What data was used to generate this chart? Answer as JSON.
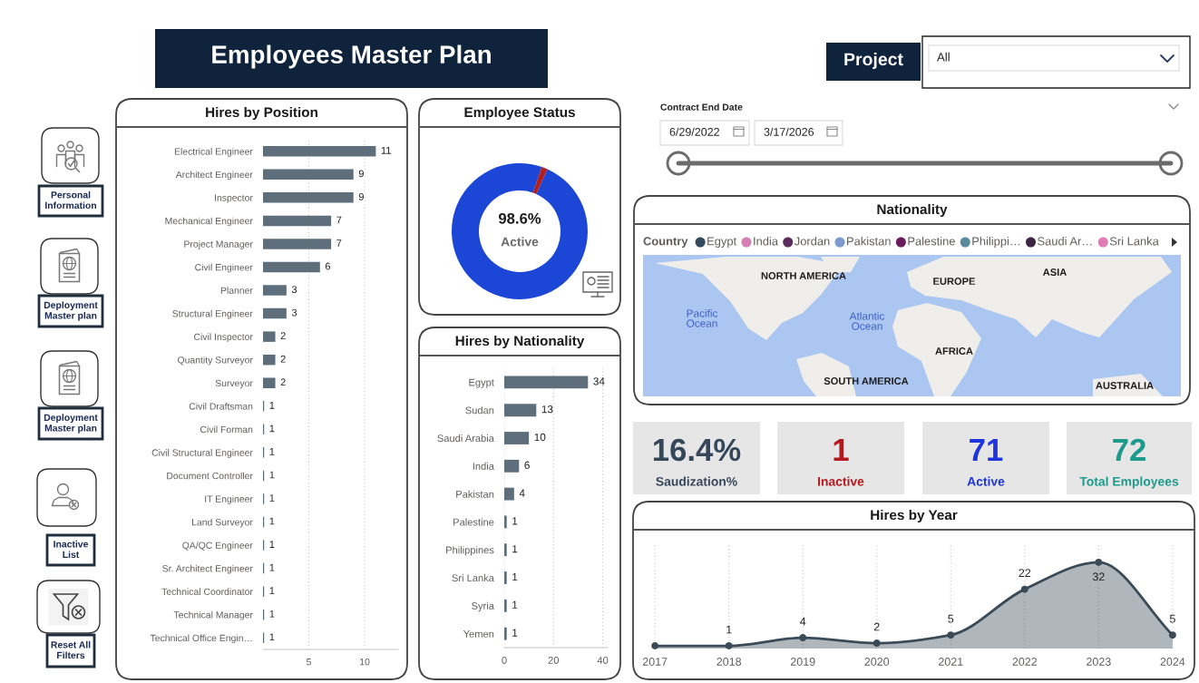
{
  "chart_data": [
    {
      "type": "other",
      "title": "Employees Master Plan"
    },
    {
      "type": "other",
      "title": "Project",
      "annotations": [
        "All"
      ]
    },
    {
      "type": "other",
      "title": "Contract End Date",
      "annotations": [
        "6/29/2022",
        "3/17/2026"
      ]
    },
    {
      "type": "other",
      "annotations": [
        "Personal\nInformation",
        "Deployment\nMaster plan",
        "Deployment\nMaster plan",
        "Inactive\nList",
        "Reset All\nFilters"
      ]
    },
    {
      "type": "bar",
      "title": "Hires by Position",
      "orientation": "horizontal",
      "categories": [
        "Electrical Engineer",
        "Architect Engineer",
        "Inspector",
        "Mechanical Engineer",
        "Project Manager",
        "Civil Engineer",
        "Planner",
        "Structural Engineer",
        "Civil Inspector",
        "Quantity Surveyor",
        "Surveyor",
        "Civil Draftsman",
        "Civil Forman",
        "Civil Structural Engineer",
        "Document Controller",
        "IT Engineer",
        "Land Surveyor",
        "QA/QC Engineer",
        "Sr. Architect Engineer",
        "Technical Coordinator",
        "Technical Manager",
        "Technical Office Engin…"
      ],
      "values": [
        11,
        9,
        9,
        7,
        7,
        6,
        3,
        3,
        2,
        2,
        2,
        1,
        1,
        1,
        1,
        1,
        1,
        1,
        1,
        1,
        1,
        1
      ],
      "color": "#5e6e7b",
      "xlim": [
        0.9,
        13
      ],
      "xticks": [
        5,
        10
      ],
      "grid": "x",
      "data_labels": true
    },
    {
      "type": "donut",
      "title": "Employee Status",
      "categories": [
        "Active",
        null
      ],
      "values": [
        98.6,
        1.4
      ],
      "colors": [
        "#1c46d6",
        "#b01f1f"
      ],
      "value_labels": [
        "98.6%",
        null
      ]
    },
    {
      "type": "bar",
      "title": "Hires by Nationality",
      "orientation": "horizontal",
      "categories": [
        "Egypt",
        "Sudan",
        "Saudi Arabia",
        "India",
        "Pakistan",
        "Palestine",
        "Philippines",
        "Sri Lanka",
        "Syria",
        "Yemen"
      ],
      "values": [
        34,
        13,
        10,
        6,
        4,
        1,
        1,
        1,
        1,
        1
      ],
      "color": "#5e6e7b",
      "xlim": [
        0,
        42
      ],
      "xticks": [
        0,
        20,
        40
      ],
      "grid": "x",
      "data_labels": true
    },
    {
      "type": "other",
      "title": "Nationality",
      "legend_title": "Country",
      "categories": [
        "Egypt",
        "India",
        "Jordan",
        "Pakistan",
        "Palestine",
        "Philippi…",
        "Saudi Ar…",
        "Sri Lanka"
      ],
      "colors": [
        "#34495e",
        "#d67fb5",
        "#5b2c5b",
        "#7d9ad0",
        "#6a1b5c",
        "#5b8a9c",
        "#3b2541",
        "#e07bb3"
      ],
      "annotations": [
        "NORTH AMERICA",
        "EUROPE",
        "ASIA",
        "Pacific\nOcean",
        "Atlantic\nOcean",
        "AFRICA",
        "SOUTH AMERICA",
        "AUSTRALIA"
      ]
    },
    {
      "type": "other",
      "categories": [
        "Saudization%",
        "Inactive",
        "Active",
        "Total Employees"
      ],
      "values": [
        16.4,
        1,
        71,
        72
      ],
      "value_labels": [
        "16.4%",
        "1",
        "71",
        "72"
      ]
    },
    {
      "type": "area",
      "title": "Hires by Year",
      "categories": [
        "2017",
        "2018",
        "2019",
        "2020",
        "2021",
        "2022",
        "2023",
        "2024"
      ],
      "values": [
        1,
        1,
        4,
        2,
        5,
        22,
        32,
        5
      ],
      "value_labels": [
        null,
        "1",
        "4",
        "2",
        "5",
        "22",
        "32",
        "5"
      ],
      "color": "#3a4a57",
      "marker": "circle",
      "grid": "x"
    }
  ]
}
